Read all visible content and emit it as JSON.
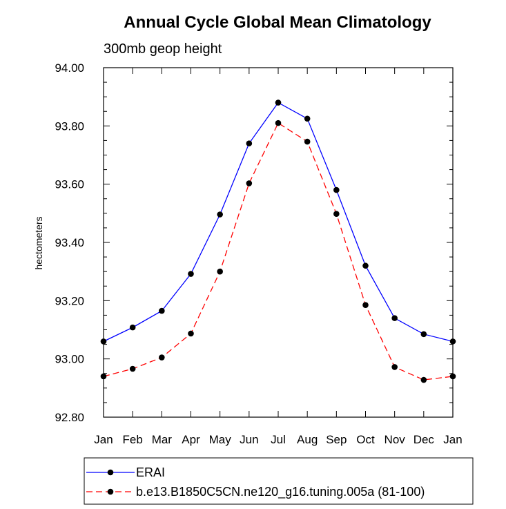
{
  "chart_data": {
    "type": "line",
    "title": "Annual Cycle Global Mean Climatology",
    "subtitle": "300mb geop height",
    "xlabel": "",
    "ylabel": "hectometers",
    "categories": [
      "Jan",
      "Feb",
      "Mar",
      "Apr",
      "May",
      "Jun",
      "Jul",
      "Aug",
      "Sep",
      "Oct",
      "Nov",
      "Dec",
      "Jan"
    ],
    "ylim": [
      92.8,
      94.0
    ],
    "yticks": [
      "92.80",
      "93.00",
      "93.20",
      "93.40",
      "93.60",
      "93.80",
      "94.00"
    ],
    "grid": false,
    "legend_position": "bottom",
    "series": [
      {
        "name": "ERAI",
        "color": "#0000ff",
        "line_style": "solid",
        "values": [
          93.06,
          93.108,
          93.165,
          93.292,
          93.496,
          93.74,
          93.88,
          93.825,
          93.58,
          93.32,
          93.14,
          93.085,
          93.06
        ]
      },
      {
        "name": "b.e13.B1850C5CN.ne120_g16.tuning.005a (81-100)",
        "color": "#ff0000",
        "line_style": "dashed",
        "values": [
          92.94,
          92.966,
          93.005,
          93.087,
          93.3,
          93.603,
          93.81,
          93.746,
          93.498,
          93.185,
          92.972,
          92.928,
          92.94
        ]
      }
    ]
  }
}
